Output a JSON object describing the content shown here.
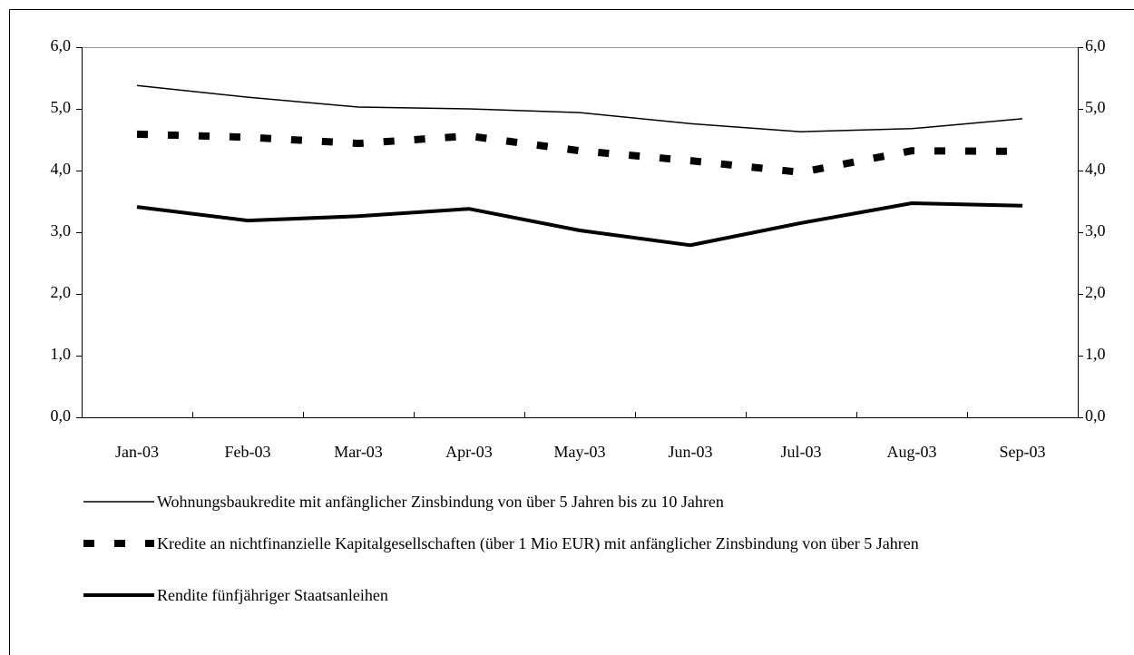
{
  "chart_data": {
    "type": "line",
    "categories": [
      "Jan-03",
      "Feb-03",
      "Mar-03",
      "Apr-03",
      "May-03",
      "Jun-03",
      "Jul-03",
      "Aug-03",
      "Sep-03"
    ],
    "series": [
      {
        "name": "Wohnungsbaukredite mit anfänglicher Zinsbindung von über 5 Jahren bis zu 10 Jahren",
        "color": "#000000",
        "values": [
          5.38,
          5.19,
          5.03,
          5.0,
          4.94,
          4.76,
          4.63,
          4.68,
          4.84
        ]
      },
      {
        "name": "Kredite an nichtfinanzielle Kapitalgesellschaften (über 1 Mio EUR) mit anfänglicher Zinsbindung von über 5 Jahren",
        "color": "#000000",
        "values": [
          4.59,
          4.54,
          4.44,
          4.56,
          4.32,
          4.16,
          3.97,
          4.32,
          4.31
        ]
      },
      {
        "name": "Rendite fünfjähriger Staatsanleihen",
        "color": "#000000",
        "values": [
          3.41,
          3.19,
          3.26,
          3.38,
          3.03,
          2.79,
          3.15,
          3.47,
          3.43
        ]
      }
    ],
    "ylim": [
      0,
      6
    ],
    "yticks": [
      {
        "value": 0,
        "label": "0,0"
      },
      {
        "value": 1,
        "label": "1,0"
      },
      {
        "value": 2,
        "label": "2,0"
      },
      {
        "value": 3,
        "label": "3,0"
      },
      {
        "value": 4,
        "label": "4,0"
      },
      {
        "value": 5,
        "label": "5,0"
      },
      {
        "value": 6,
        "label": "6,0"
      }
    ],
    "y2lim": [
      0,
      6
    ],
    "y2ticks": [
      {
        "value": 0,
        "label": "0,0"
      },
      {
        "value": 1,
        "label": "1,0"
      },
      {
        "value": 2,
        "label": "2,0"
      },
      {
        "value": 3,
        "label": "3,0"
      },
      {
        "value": 4,
        "label": "4,0"
      },
      {
        "value": 5,
        "label": "5,0"
      },
      {
        "value": 6,
        "label": "6,0"
      }
    ],
    "grid": false
  }
}
